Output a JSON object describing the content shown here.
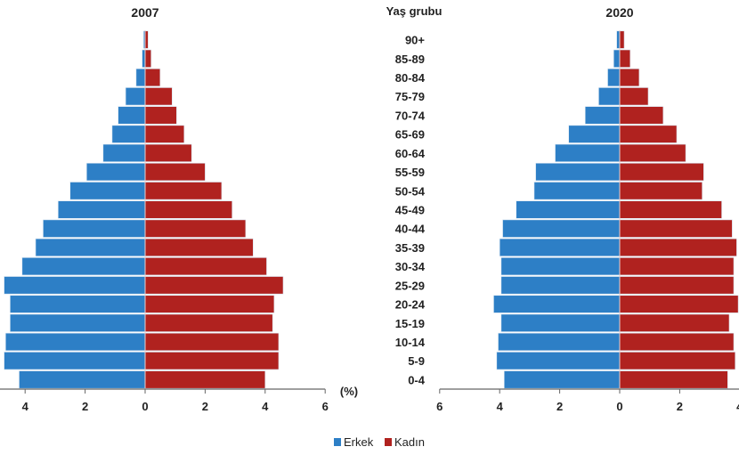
{
  "chart_data": {
    "type": "bar",
    "subtype": "population-pyramid",
    "category_label": "Yaş grubu",
    "unit_label": "(%)",
    "categories": [
      "90+",
      "85-89",
      "80-84",
      "75-79",
      "70-74",
      "65-69",
      "60-64",
      "55-59",
      "50-54",
      "45-49",
      "40-44",
      "35-39",
      "30-34",
      "25-29",
      "20-24",
      "15-19",
      "10-14",
      "5-9",
      "0-4"
    ],
    "xlim": [
      0,
      6
    ],
    "xticks": [
      "6",
      "4",
      "2",
      "0",
      "2",
      "4",
      "6"
    ],
    "legend": {
      "position": "bottom",
      "items": [
        "Erkek",
        "Kadın"
      ]
    },
    "colors": {
      "Erkek": "#2d7fc6",
      "Kadın": "#b0221f"
    },
    "panels": [
      {
        "title": "2007",
        "series": [
          {
            "name": "Erkek",
            "values": [
              0.05,
              0.1,
              0.3,
              0.65,
              0.9,
              1.1,
              1.4,
              1.95,
              2.5,
              2.9,
              3.4,
              3.65,
              4.1,
              4.7,
              4.5,
              4.5,
              4.65,
              4.7,
              4.2
            ]
          },
          {
            "name": "Kadın",
            "values": [
              0.1,
              0.2,
              0.5,
              0.9,
              1.05,
              1.3,
              1.55,
              2.0,
              2.55,
              2.9,
              3.35,
              3.6,
              4.05,
              4.6,
              4.3,
              4.25,
              4.45,
              4.45,
              4.0
            ]
          }
        ]
      },
      {
        "title": "2020",
        "series": [
          {
            "name": "Erkek",
            "values": [
              0.1,
              0.2,
              0.4,
              0.7,
              1.15,
              1.7,
              2.15,
              2.8,
              2.85,
              3.45,
              3.9,
              4.0,
              3.95,
              3.95,
              4.2,
              3.95,
              4.05,
              4.1,
              3.85
            ]
          },
          {
            "name": "Kadın",
            "values": [
              0.15,
              0.35,
              0.65,
              0.95,
              1.45,
              1.9,
              2.2,
              2.8,
              2.75,
              3.4,
              3.75,
              3.9,
              3.8,
              3.8,
              3.95,
              3.65,
              3.8,
              3.85,
              3.6
            ]
          }
        ]
      }
    ]
  }
}
